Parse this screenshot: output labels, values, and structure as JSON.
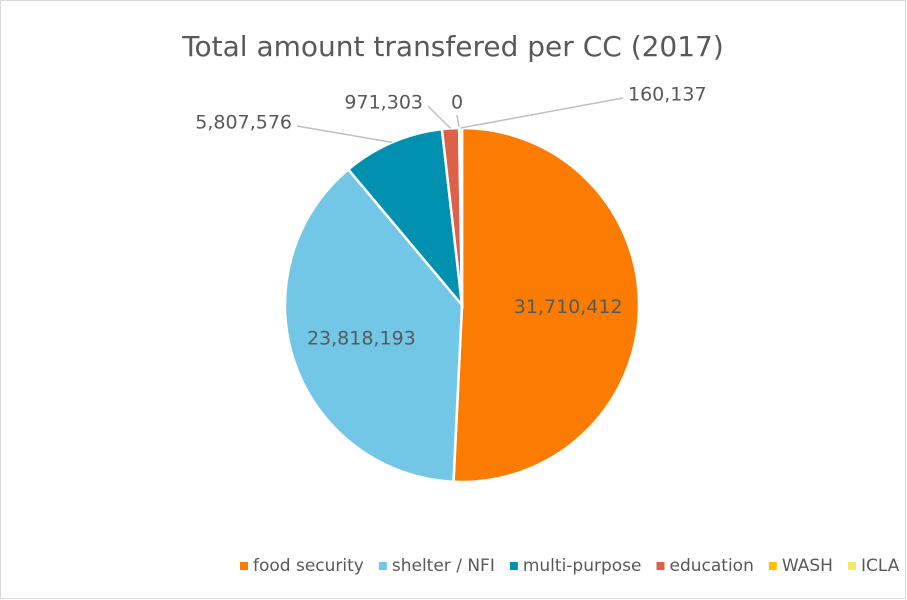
{
  "chart_data": {
    "type": "pie",
    "title": "Total amount transfered per CC (2017)",
    "categories": [
      "food security",
      "shelter / NFI",
      "multi-purpose",
      "education",
      "WASH",
      "ICLA"
    ],
    "values": [
      31710412,
      23818193,
      5807576,
      971303,
      0,
      160137
    ],
    "value_labels": [
      "31,710,412",
      "23,818,193",
      "5,807,576",
      "971,303",
      "0",
      "160,137"
    ],
    "colors": [
      "#fb7c00",
      "#72c7e7",
      "#0091b1",
      "#db6248",
      "#ffc000",
      "#f0e96a"
    ],
    "legend": "bottom"
  }
}
